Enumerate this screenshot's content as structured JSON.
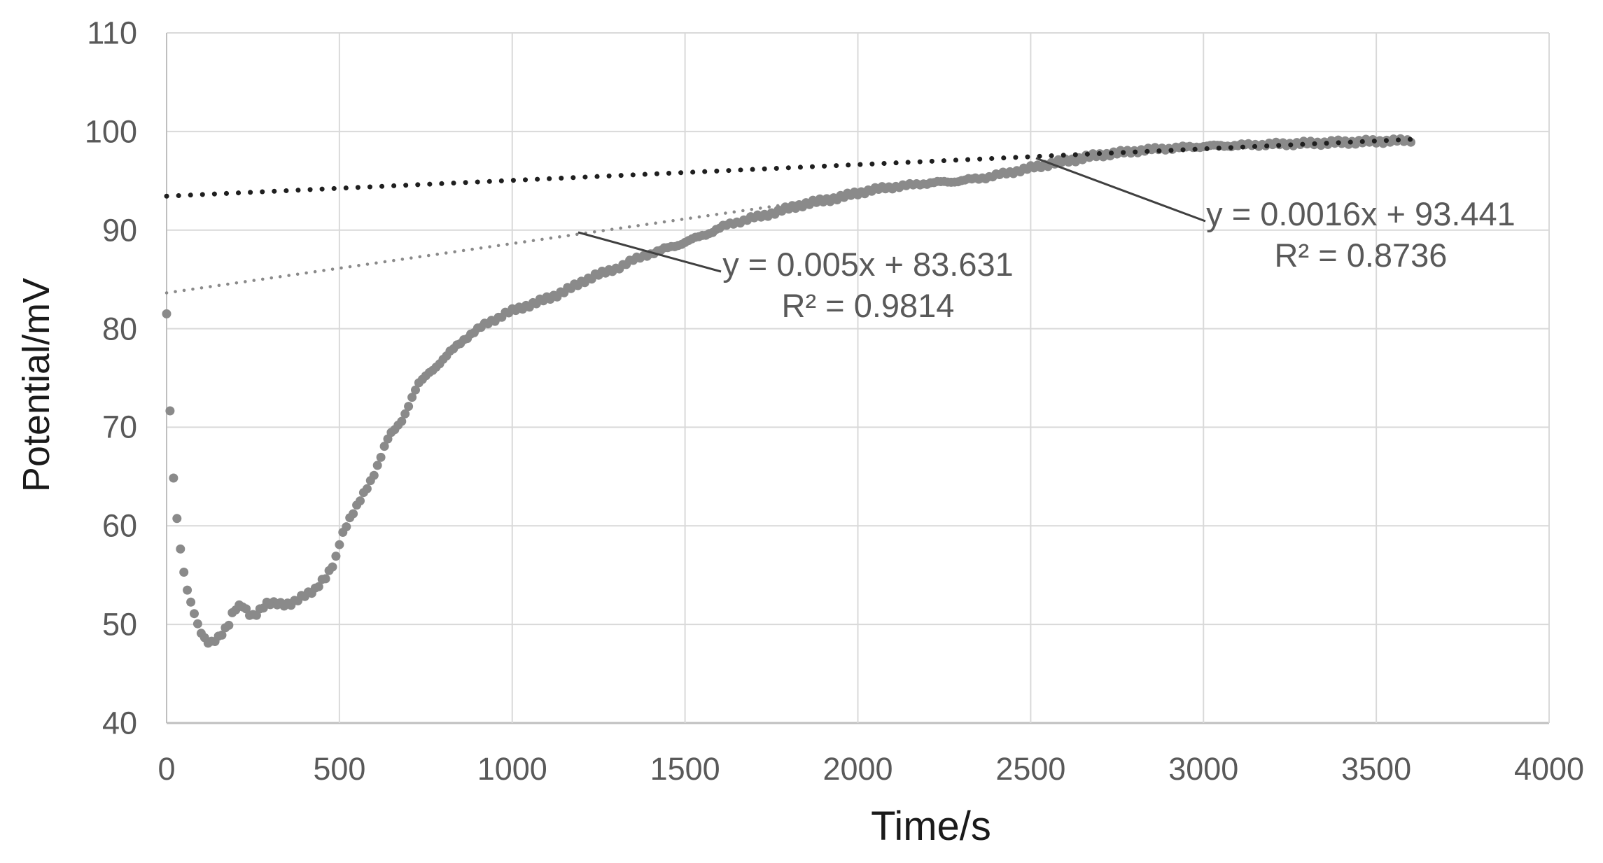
{
  "page": {
    "background": "#ffffff"
  },
  "colors": {
    "data_points": "#8a8a8a",
    "trend_initial": "#8a8a8a",
    "trend_final": "#1f1f1f",
    "gridline": "#d9d9d9",
    "axis_line": "#bfbfbf",
    "tick_text": "#595959",
    "annotation_text": "#595959",
    "leader_line": "#404040",
    "axis_title_text": "#1a1a1a"
  },
  "chart_data": {
    "type": "scatter",
    "title": "",
    "xlabel": "Time/s",
    "ylabel": "Potential/mV",
    "xlim": [
      0,
      4000
    ],
    "ylim": [
      40,
      110
    ],
    "x_ticks": [
      0,
      500,
      1000,
      1500,
      2000,
      2500,
      3000,
      3500,
      4000
    ],
    "y_ticks": [
      40,
      50,
      60,
      70,
      80,
      90,
      100,
      110
    ],
    "grid": true,
    "legend_position": "none",
    "series": [
      {
        "name": "potential-vs-time",
        "marker": "circle",
        "color": "#8a8a8a",
        "sample_interval_s": 10,
        "x_end": 3600,
        "points": [
          [
            0,
            81.5
          ],
          [
            10,
            71.6
          ],
          [
            18,
            65.7
          ],
          [
            26,
            62.0
          ],
          [
            34,
            59.3
          ],
          [
            42,
            57.1
          ],
          [
            50,
            55.3
          ],
          [
            60,
            53.6
          ],
          [
            70,
            52.3
          ],
          [
            80,
            51.2
          ],
          [
            90,
            50.0
          ],
          [
            100,
            49.1
          ],
          [
            110,
            48.5
          ],
          [
            119,
            48.1
          ],
          [
            130,
            48.2
          ],
          [
            140,
            48.4
          ],
          [
            150,
            48.8
          ],
          [
            160,
            49.1
          ],
          [
            170,
            49.6
          ],
          [
            180,
            50.0
          ],
          [
            190,
            51.0
          ],
          [
            200,
            51.5
          ],
          [
            210,
            51.8
          ],
          [
            220,
            51.9
          ],
          [
            235,
            51.3
          ],
          [
            247,
            50.9
          ],
          [
            260,
            51.1
          ],
          [
            273,
            51.5
          ],
          [
            288,
            52.0
          ],
          [
            300,
            52.1
          ],
          [
            320,
            52.2
          ],
          [
            340,
            52.1
          ],
          [
            355,
            52.0
          ],
          [
            370,
            52.2
          ],
          [
            385,
            52.6
          ],
          [
            400,
            53.0
          ],
          [
            415,
            53.3
          ],
          [
            430,
            53.6
          ],
          [
            445,
            54.2
          ],
          [
            460,
            54.7
          ],
          [
            475,
            55.5
          ],
          [
            490,
            56.8
          ],
          [
            500,
            58.3
          ],
          [
            510,
            59.3
          ],
          [
            520,
            60.1
          ],
          [
            535,
            61.0
          ],
          [
            550,
            61.9
          ],
          [
            565,
            62.9
          ],
          [
            580,
            63.9
          ],
          [
            595,
            64.9
          ],
          [
            610,
            66.1
          ],
          [
            625,
            67.5
          ],
          [
            640,
            68.8
          ],
          [
            655,
            69.6
          ],
          [
            670,
            70.2
          ],
          [
            685,
            71.0
          ],
          [
            700,
            72.2
          ],
          [
            715,
            73.4
          ],
          [
            730,
            74.4
          ],
          [
            745,
            75.0
          ],
          [
            760,
            75.6
          ],
          [
            775,
            76.0
          ],
          [
            790,
            76.5
          ],
          [
            805,
            77.0
          ],
          [
            820,
            77.6
          ],
          [
            840,
            78.3
          ],
          [
            860,
            78.9
          ],
          [
            880,
            79.4
          ],
          [
            900,
            79.9
          ],
          [
            920,
            80.4
          ],
          [
            940,
            80.8
          ],
          [
            960,
            81.1
          ],
          [
            980,
            81.5
          ],
          [
            1000,
            81.8
          ],
          [
            1030,
            82.2
          ],
          [
            1060,
            82.5
          ],
          [
            1090,
            82.9
          ],
          [
            1120,
            83.3
          ],
          [
            1150,
            83.8
          ],
          [
            1180,
            84.3
          ],
          [
            1210,
            84.9
          ],
          [
            1240,
            85.4
          ],
          [
            1270,
            85.7
          ],
          [
            1300,
            86.1
          ],
          [
            1330,
            86.6
          ],
          [
            1360,
            87.1
          ],
          [
            1390,
            87.5
          ],
          [
            1420,
            87.8
          ],
          [
            1450,
            88.2
          ],
          [
            1480,
            88.5
          ],
          [
            1510,
            88.9
          ],
          [
            1540,
            89.3
          ],
          [
            1570,
            89.7
          ],
          [
            1600,
            90.2
          ],
          [
            1630,
            90.6
          ],
          [
            1660,
            90.9
          ],
          [
            1690,
            91.2
          ],
          [
            1720,
            91.4
          ],
          [
            1750,
            91.7
          ],
          [
            1780,
            92.0
          ],
          [
            1810,
            92.3
          ],
          [
            1840,
            92.6
          ],
          [
            1870,
            92.8
          ],
          [
            1900,
            93.0
          ],
          [
            1930,
            93.2
          ],
          [
            1960,
            93.4
          ],
          [
            1990,
            93.7
          ],
          [
            2020,
            93.9
          ],
          [
            2050,
            94.1
          ],
          [
            2080,
            94.3
          ],
          [
            2110,
            94.4
          ],
          [
            2140,
            94.5
          ],
          [
            2180,
            94.7
          ],
          [
            2220,
            94.8
          ],
          [
            2260,
            94.9
          ],
          [
            2300,
            95.0
          ],
          [
            2340,
            95.2
          ],
          [
            2380,
            95.4
          ],
          [
            2420,
            95.7
          ],
          [
            2460,
            96.0
          ],
          [
            2500,
            96.3
          ],
          [
            2540,
            96.6
          ],
          [
            2580,
            96.9
          ],
          [
            2620,
            97.1
          ],
          [
            2660,
            97.4
          ],
          [
            2700,
            97.6
          ],
          [
            2740,
            97.8
          ],
          [
            2780,
            97.9
          ],
          [
            2820,
            98.1
          ],
          [
            2860,
            98.2
          ],
          [
            2900,
            98.3
          ],
          [
            2950,
            98.4
          ],
          [
            3000,
            98.5
          ],
          [
            3100,
            98.6
          ],
          [
            3200,
            98.7
          ],
          [
            3300,
            98.8
          ],
          [
            3400,
            98.9
          ],
          [
            3500,
            99.0
          ],
          [
            3600,
            99.1
          ]
        ]
      }
    ],
    "trendlines": [
      {
        "name": "linear-fit-initial",
        "style": "dotted",
        "color": "#8a8a8a",
        "slope": 0.005,
        "intercept": 83.631,
        "x_start": 0,
        "x_end": 2600,
        "equation": "y = 0.005x + 83.631",
        "r_squared": "R² = 0.9814"
      },
      {
        "name": "linear-fit-final",
        "style": "dotted",
        "color": "#1f1f1f",
        "slope": 0.0016,
        "intercept": 93.441,
        "x_start": 0,
        "x_end": 3600,
        "equation": "y = 0.0016x + 93.441",
        "r_squared": "R² = 0.8736"
      }
    ]
  }
}
